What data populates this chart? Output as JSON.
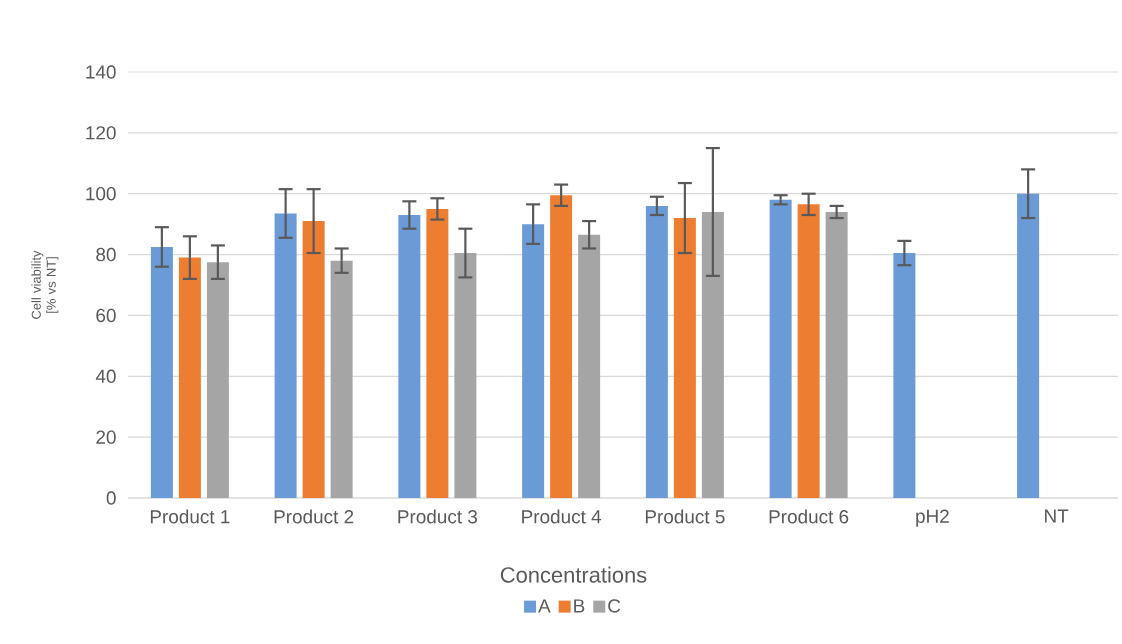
{
  "chart_data": {
    "type": "bar",
    "xlabel": "Concentrations",
    "ylabel": "Cell viability [% vs NT]",
    "categories": [
      "Product 1",
      "Product 2",
      "Product 3",
      "Product 4",
      "Product 5",
      "Product 6",
      "pH2",
      "NT"
    ],
    "series": [
      {
        "name": "A",
        "color": "#6a9bd6",
        "values": [
          82.5,
          93.5,
          93,
          90,
          96,
          98,
          80.5,
          100
        ],
        "errors": [
          6.5,
          8,
          4.5,
          6.5,
          3,
          1.5,
          4,
          8
        ]
      },
      {
        "name": "B",
        "color": "#ed7d31",
        "values": [
          79,
          91,
          95,
          99.5,
          92,
          96.5,
          null,
          null
        ],
        "errors": [
          7,
          10.5,
          3.5,
          3.5,
          11.5,
          3.5,
          null,
          null
        ]
      },
      {
        "name": "C",
        "color": "#a5a5a5",
        "values": [
          77.5,
          78,
          80.5,
          86.5,
          94,
          94,
          null,
          null
        ],
        "errors": [
          5.5,
          4,
          8,
          4.5,
          21,
          2,
          null,
          null
        ]
      }
    ],
    "ylim": [
      0,
      140
    ],
    "yticks": [
      0,
      20,
      40,
      60,
      80,
      100,
      120,
      140
    ],
    "grid": "y",
    "legend": "bottom"
  }
}
